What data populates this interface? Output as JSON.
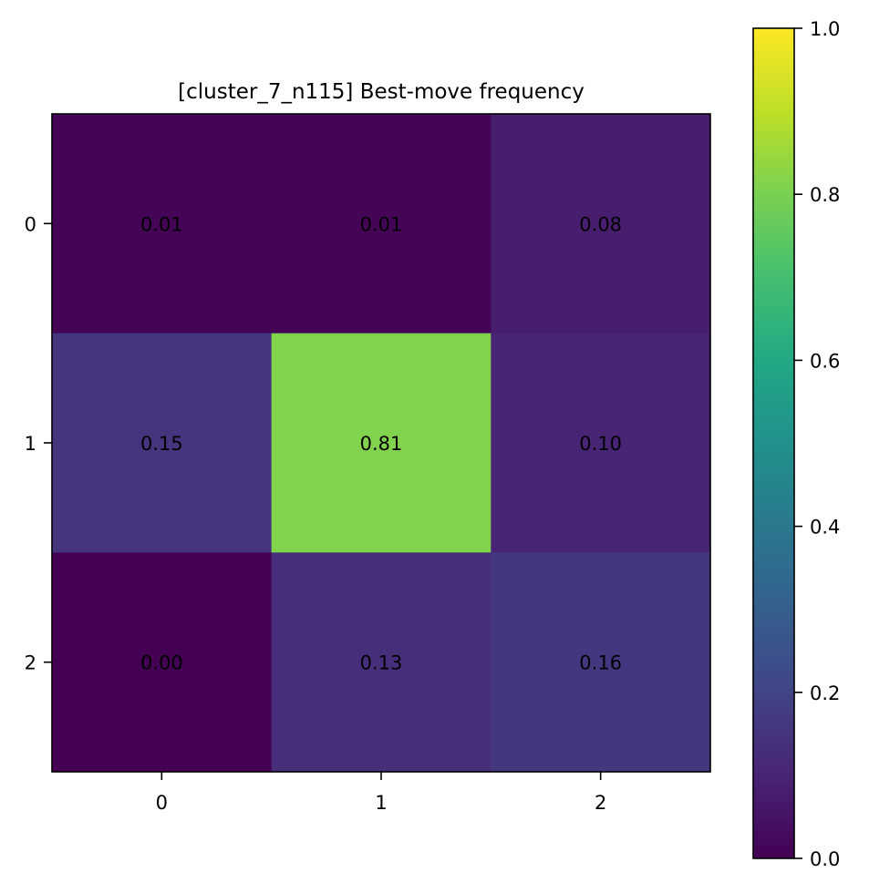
{
  "chart_data": {
    "type": "heatmap",
    "title": "[cluster_7_n115] Best-move frequency",
    "xlabel": "",
    "ylabel": "",
    "x_categories": [
      "0",
      "1",
      "2"
    ],
    "y_categories": [
      "0",
      "1",
      "2"
    ],
    "values": [
      [
        0.01,
        0.01,
        0.08
      ],
      [
        0.15,
        0.81,
        0.1
      ],
      [
        0.0,
        0.13,
        0.16
      ]
    ],
    "cell_labels": [
      [
        "0.01",
        "0.01",
        "0.08"
      ],
      [
        "0.15",
        "0.81",
        "0.10"
      ],
      [
        "0.00",
        "0.13",
        "0.16"
      ]
    ],
    "colormap": "viridis",
    "vmin": 0.0,
    "vmax": 1.0,
    "colorbar": {
      "position": "right",
      "ticks": [
        0.0,
        0.2,
        0.4,
        0.6,
        0.8,
        1.0
      ],
      "tick_labels": [
        "0.0",
        "0.2",
        "0.4",
        "0.6",
        "0.8",
        "1.0"
      ]
    },
    "grid": false
  }
}
